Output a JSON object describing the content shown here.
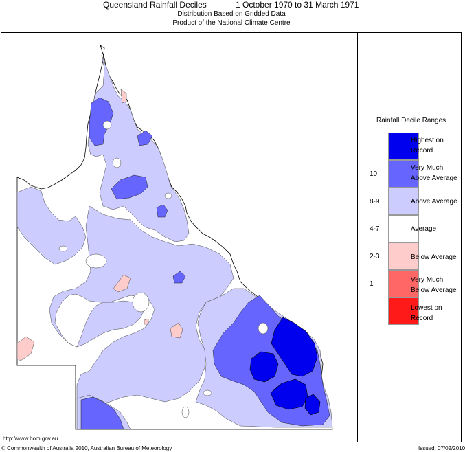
{
  "header": {
    "title": "Queensland Rainfall Deciles",
    "period": "1 October 1970 to 31 March 1971",
    "subtitle1": "Distribution Based on Gridded Data",
    "subtitle2": "Product of the National Climate Centre"
  },
  "legend": {
    "title": "Rainfall Decile Ranges",
    "entries": [
      {
        "label1": "Highest on",
        "label2": "Record",
        "decile": "",
        "color": "#0000ee"
      },
      {
        "label1": "Very Much",
        "label2": "Above Average",
        "decile": "10",
        "color": "#6666ff"
      },
      {
        "label1": "Above Average",
        "label2": "",
        "decile": "8-9",
        "color": "#ccccff"
      },
      {
        "label1": "Average",
        "label2": "",
        "decile": "4-7",
        "color": "#ffffff"
      },
      {
        "label1": "Below Average",
        "label2": "",
        "decile": "2-3",
        "color": "#ffcccc"
      },
      {
        "label1": "Very Much",
        "label2": "Below Average",
        "decile": "1",
        "color": "#ff6666"
      },
      {
        "label1": "Lowest on",
        "label2": "Record",
        "decile": "",
        "color": "#ff1a1a"
      }
    ]
  },
  "footer": {
    "url": "http://www.bom.gov.au",
    "copyright": "© Commonwealth of Australia 2010, Australian Bureau of Meteorology",
    "issued": "Issued: 07/02/2010"
  }
}
